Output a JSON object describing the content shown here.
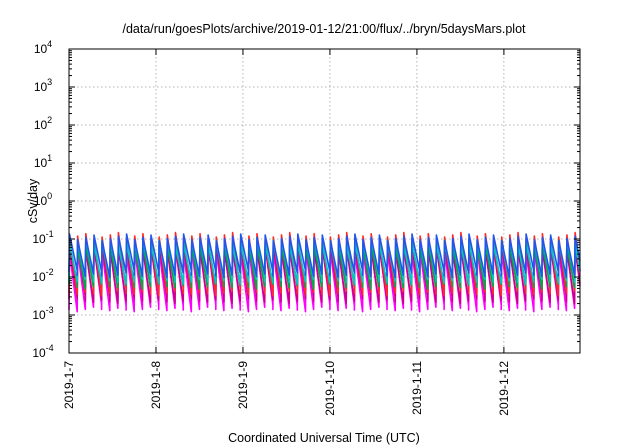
{
  "chart_data": {
    "type": "line",
    "title": "/data/run/goesPlots/archive/2019-01-12/21:00/flux/../bryn/5daysMars.plot",
    "xlabel": "Coordinated Universal Time (UTC)",
    "ylabel": "cSv/day",
    "x_range": [
      "2019-01-07T00:00",
      "2019-01-12T21:00"
    ],
    "x_ticks": [
      "2019-1-7",
      "2019-1-8",
      "2019-1-9",
      "2019-1-10",
      "2019-1-11",
      "2019-1-12"
    ],
    "y_scale": "log",
    "ylim": [
      0.0001,
      10000
    ],
    "y_ticks": [
      {
        "base": "10",
        "exp": "-4",
        "value": 0.0001
      },
      {
        "base": "10",
        "exp": "-3",
        "value": 0.001
      },
      {
        "base": "10",
        "exp": "-2",
        "value": 0.01
      },
      {
        "base": "10",
        "exp": "-1",
        "value": 0.1
      },
      {
        "base": "10",
        "exp": "0",
        "value": 1
      },
      {
        "base": "10",
        "exp": "1",
        "value": 10
      },
      {
        "base": "10",
        "exp": "2",
        "value": 100
      },
      {
        "base": "10",
        "exp": "3",
        "value": 1000
      },
      {
        "base": "10",
        "exp": "4",
        "value": 10000
      }
    ],
    "grid": true,
    "legend": "none",
    "pattern": "sawtooth",
    "cycle_hours": 2.25,
    "series": [
      {
        "color": "#ff00ff",
        "peak": 0.055,
        "trough": 0.0015
      },
      {
        "color": "#c8008c",
        "peak": 0.06,
        "trough": 0.0025
      },
      {
        "color": "#ff2a2a",
        "peak": 0.12,
        "trough": 0.004
      },
      {
        "color": "#00aa44",
        "peak": 0.075,
        "trough": 0.006
      },
      {
        "color": "#00c8c8",
        "peak": 0.085,
        "trough": 0.008
      },
      {
        "color": "#2255ee",
        "peak": 0.11,
        "trough": 0.012
      }
    ]
  }
}
